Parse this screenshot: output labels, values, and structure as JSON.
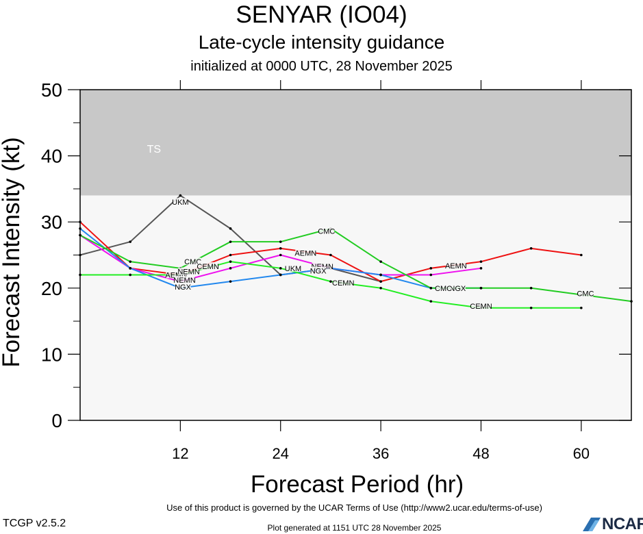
{
  "header": {
    "title": "SENYAR (IO04)",
    "subtitle": "Late-cycle intensity guidance",
    "initialized": "initialized at 0000 UTC, 28 November 2025"
  },
  "footer": {
    "terms": "Use of this product is governed by the UCAR Terms of Use (http://www2.ucar.edu/terms-of-use)",
    "version": "TCGP v2.5.2",
    "generated": "Plot generated at 1151 UTC   28 November 2025",
    "logo_text": "NCAR"
  },
  "chart_data": {
    "type": "line",
    "title": "SENYAR (IO04)",
    "subtitle": "Late-cycle intensity guidance",
    "xlabel": "Forecast Period (hr)",
    "ylabel": "Forecast Intensity (kt)",
    "xlim": [
      0,
      66
    ],
    "ylim": [
      0,
      50
    ],
    "x_ticks": [
      12,
      24,
      36,
      48,
      60
    ],
    "y_ticks": [
      0,
      10,
      20,
      30,
      40,
      50
    ],
    "grid": false,
    "bands": [
      {
        "label": "TS",
        "y_from": 34,
        "y_to": 50,
        "color": "#c8c8c8"
      },
      {
        "label": "",
        "y_from": 0,
        "y_to": 34,
        "color": "#f7f7f7"
      }
    ],
    "series": [
      {
        "name": "UKM",
        "color": "#555555",
        "x": [
          0,
          6,
          12,
          18,
          24,
          30,
          36
        ],
        "y": [
          25,
          27,
          34,
          29,
          22,
          23,
          21
        ]
      },
      {
        "name": "AEMN",
        "color": "#ee1111",
        "x": [
          0,
          6,
          12,
          18,
          24,
          30,
          36,
          42,
          48,
          54,
          60
        ],
        "y": [
          30,
          23,
          22,
          25,
          26,
          25,
          21,
          23,
          24,
          26,
          25
        ]
      },
      {
        "name": "NEMN",
        "color": "#ee11ee",
        "x": [
          0,
          6,
          12,
          18,
          24,
          30,
          36,
          42,
          48
        ],
        "y": [
          28,
          23,
          21,
          23,
          25,
          23,
          22,
          22,
          23
        ]
      },
      {
        "name": "NGX",
        "color": "#2288ee",
        "x": [
          0,
          6,
          12,
          18,
          24,
          30,
          36,
          42,
          48
        ],
        "y": [
          29,
          23,
          20,
          21,
          22,
          23,
          22,
          20,
          20
        ]
      },
      {
        "name": "CMC",
        "color": "#22cc22",
        "x": [
          0,
          6,
          12,
          18,
          24,
          30,
          36,
          42,
          48,
          54,
          60,
          66
        ],
        "y": [
          28,
          24,
          23,
          27,
          27,
          29,
          24,
          20,
          20,
          20,
          19,
          18
        ]
      },
      {
        "name": "CEMN",
        "color": "#22ee22",
        "x": [
          0,
          6,
          12,
          18,
          24,
          30,
          36,
          42,
          48,
          54,
          60
        ],
        "y": [
          22,
          22,
          22,
          24,
          23,
          21,
          20,
          18,
          17,
          17,
          17
        ]
      }
    ],
    "annotations": [
      {
        "text": "UKM",
        "x": 12,
        "y": 33
      },
      {
        "text": "UKM",
        "x": 25.5,
        "y": 23
      },
      {
        "text": "AEMN",
        "x": 11.5,
        "y": 22
      },
      {
        "text": "AEMN",
        "x": 27,
        "y": 25.3
      },
      {
        "text": "AEMN",
        "x": 45,
        "y": 23.4
      },
      {
        "text": "NEMN",
        "x": 13,
        "y": 22.5
      },
      {
        "text": "NEMN",
        "x": 12.5,
        "y": 21.2
      },
      {
        "text": "NEMN",
        "x": 29,
        "y": 23.3
      },
      {
        "text": "NGX",
        "x": 12.3,
        "y": 20.2
      },
      {
        "text": "NGX",
        "x": 28.5,
        "y": 22.6
      },
      {
        "text": "NGX",
        "x": 45.2,
        "y": 20
      },
      {
        "text": "CMC",
        "x": 13.5,
        "y": 24
      },
      {
        "text": "CMC",
        "x": 29.5,
        "y": 28.6
      },
      {
        "text": "CMC",
        "x": 43.5,
        "y": 20
      },
      {
        "text": "CMC",
        "x": 60.5,
        "y": 19.2
      },
      {
        "text": "CEMN",
        "x": 15.3,
        "y": 23.3
      },
      {
        "text": "CEMN",
        "x": 31.5,
        "y": 20.8
      },
      {
        "text": "CEMN",
        "x": 48,
        "y": 17.3
      }
    ]
  }
}
